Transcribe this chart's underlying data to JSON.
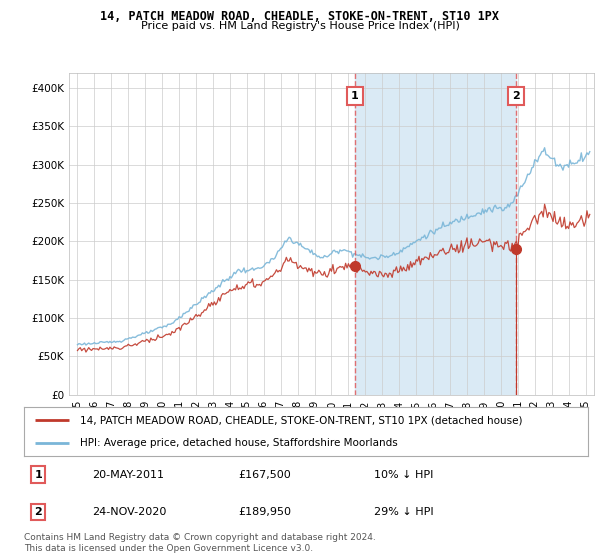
{
  "title": "14, PATCH MEADOW ROAD, CHEADLE, STOKE-ON-TRENT, ST10 1PX",
  "subtitle": "Price paid vs. HM Land Registry's House Price Index (HPI)",
  "legend_line1": "14, PATCH MEADOW ROAD, CHEADLE, STOKE-ON-TRENT, ST10 1PX (detached house)",
  "legend_line2": "HPI: Average price, detached house, Staffordshire Moorlands",
  "transaction1_label": "1",
  "transaction1_date": "20-MAY-2011",
  "transaction1_price": "£167,500",
  "transaction1_hpi": "10% ↓ HPI",
  "transaction2_label": "2",
  "transaction2_date": "24-NOV-2020",
  "transaction2_price": "£189,950",
  "transaction2_hpi": "29% ↓ HPI",
  "footer": "Contains HM Land Registry data © Crown copyright and database right 2024.\nThis data is licensed under the Open Government Licence v3.0.",
  "hpi_color": "#7ab6d8",
  "hpi_fill_color": "#daeaf5",
  "price_color": "#c0392b",
  "vline_color": "#e05a5a",
  "marker_color": "#c0392b",
  "background_color": "#ffffff",
  "grid_color": "#cccccc",
  "ylim": [
    0,
    420000
  ],
  "yticks": [
    0,
    50000,
    100000,
    150000,
    200000,
    250000,
    300000,
    350000,
    400000
  ],
  "start_year": 1995,
  "end_year": 2025,
  "transaction1_x": 2011.38,
  "transaction2_x": 2020.9
}
